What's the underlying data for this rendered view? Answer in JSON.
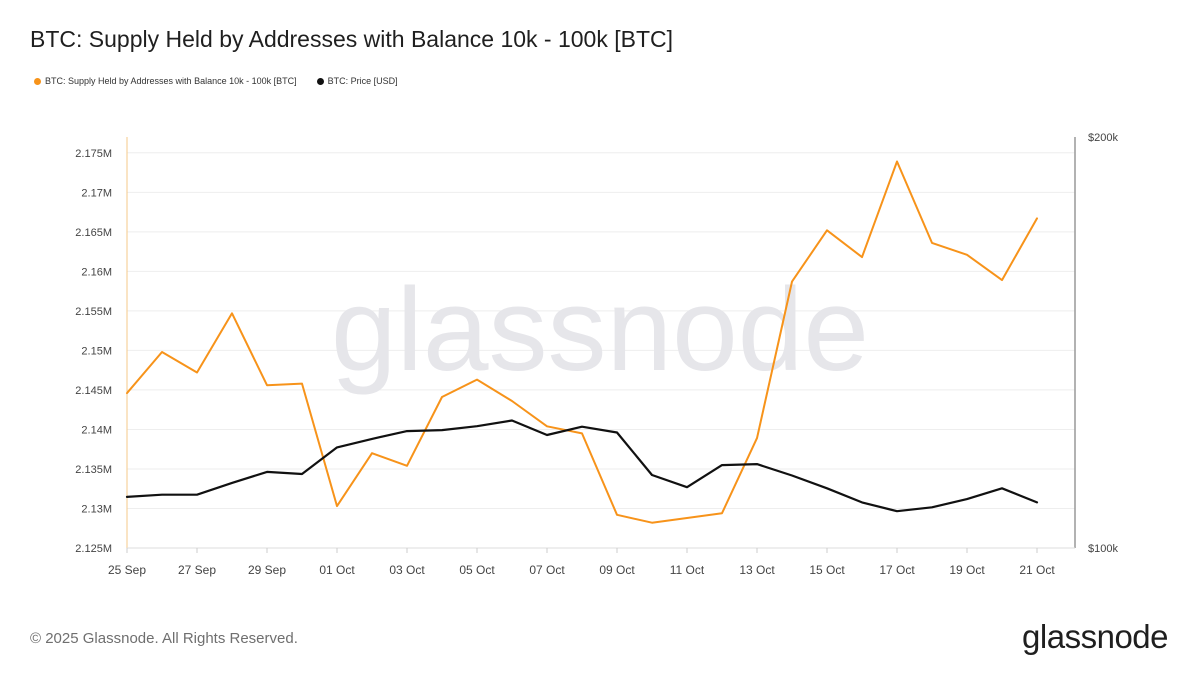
{
  "title": "BTC: Supply Held by Addresses with Balance 10k - 100k [BTC]",
  "watermark": "glassnode",
  "footer": {
    "copyright": "© 2025 Glassnode. All Rights Reserved.",
    "logo": "glassnode"
  },
  "colors": {
    "supply": "#f7931a",
    "price": "#111111",
    "grid": "#eeeeee",
    "axis": "#999999"
  },
  "chart_data": {
    "type": "line",
    "title": "BTC: Supply Held by Addresses with Balance 10k - 100k [BTC]",
    "x": [
      "25 Sep",
      "26 Sep",
      "27 Sep",
      "28 Sep",
      "29 Sep",
      "30 Sep",
      "01 Oct",
      "02 Oct",
      "03 Oct",
      "04 Oct",
      "05 Oct",
      "06 Oct",
      "07 Oct",
      "08 Oct",
      "09 Oct",
      "10 Oct",
      "11 Oct",
      "12 Oct",
      "13 Oct",
      "14 Oct",
      "15 Oct",
      "16 Oct",
      "17 Oct",
      "18 Oct",
      "19 Oct",
      "20 Oct",
      "21 Oct"
    ],
    "x_tick_labels": [
      "25 Sep",
      "27 Sep",
      "29 Sep",
      "01 Oct",
      "03 Oct",
      "05 Oct",
      "07 Oct",
      "09 Oct",
      "11 Oct",
      "13 Oct",
      "15 Oct",
      "17 Oct",
      "19 Oct",
      "21 Oct"
    ],
    "legend_position": "top-left",
    "grid": true,
    "y_left": {
      "range": [
        2125000,
        2177000
      ],
      "tick_values": [
        2125000,
        2130000,
        2135000,
        2140000,
        2145000,
        2150000,
        2155000,
        2160000,
        2165000,
        2170000,
        2175000
      ],
      "tick_labels": [
        "2.125M",
        "2.13M",
        "2.135M",
        "2.14M",
        "2.145M",
        "2.15M",
        "2.155M",
        "2.16M",
        "2.165M",
        "2.17M",
        "2.175M"
      ]
    },
    "y_right": {
      "scale": "log",
      "range": [
        100000,
        200000
      ],
      "tick_values": [
        100000,
        200000
      ],
      "tick_labels": [
        "$100k",
        "$200k"
      ]
    },
    "series": [
      {
        "name": "BTC: Supply Held by Addresses with Balance 10k - 100k [BTC]",
        "axis": "left",
        "color": "#f7931a",
        "values": [
          2144600,
          2149800,
          2147200,
          2154700,
          2145600,
          2145800,
          2130300,
          2137000,
          2135400,
          2144100,
          2146300,
          2143600,
          2140400,
          2139500,
          2129200,
          2128200,
          2128800,
          2129400,
          2138900,
          2158700,
          2165200,
          2161800,
          2173900,
          2163600,
          2162100,
          2158900,
          2166700
        ]
      },
      {
        "name": "BTC: Price [USD]",
        "axis": "right",
        "color": "#111111",
        "values": [
          109000,
          109400,
          109400,
          111600,
          113700,
          113300,
          118500,
          120200,
          121800,
          122000,
          122800,
          124000,
          121000,
          122700,
          121500,
          113100,
          110800,
          115000,
          115200,
          113000,
          110600,
          108000,
          106400,
          107100,
          108600,
          110600,
          108000
        ]
      }
    ]
  }
}
